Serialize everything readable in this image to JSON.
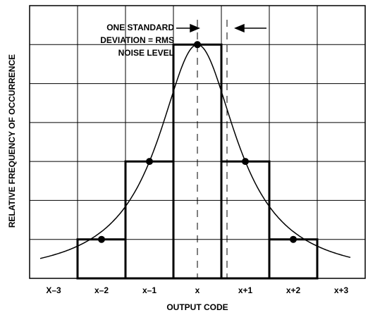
{
  "chart_data": {
    "type": "histogram",
    "categories": [
      "X–3",
      "x–2",
      "x–1",
      "x",
      "x+1",
      "x+2",
      "x+3"
    ],
    "values": [
      0,
      1,
      3,
      6,
      3,
      1,
      0
    ],
    "color": "#000000",
    "ylim": [
      0,
      7
    ],
    "yticks": [
      0,
      1,
      2,
      3,
      4,
      5,
      6,
      7
    ],
    "grid": true,
    "xlabel": "OUTPUT CODE",
    "ylabel": "RELATIVE FREQUENCY OF OCCURRENCE",
    "annotation": [
      "ONE STANDARD",
      "DEVIATION = RMS",
      "NOISE LEVEL"
    ]
  }
}
